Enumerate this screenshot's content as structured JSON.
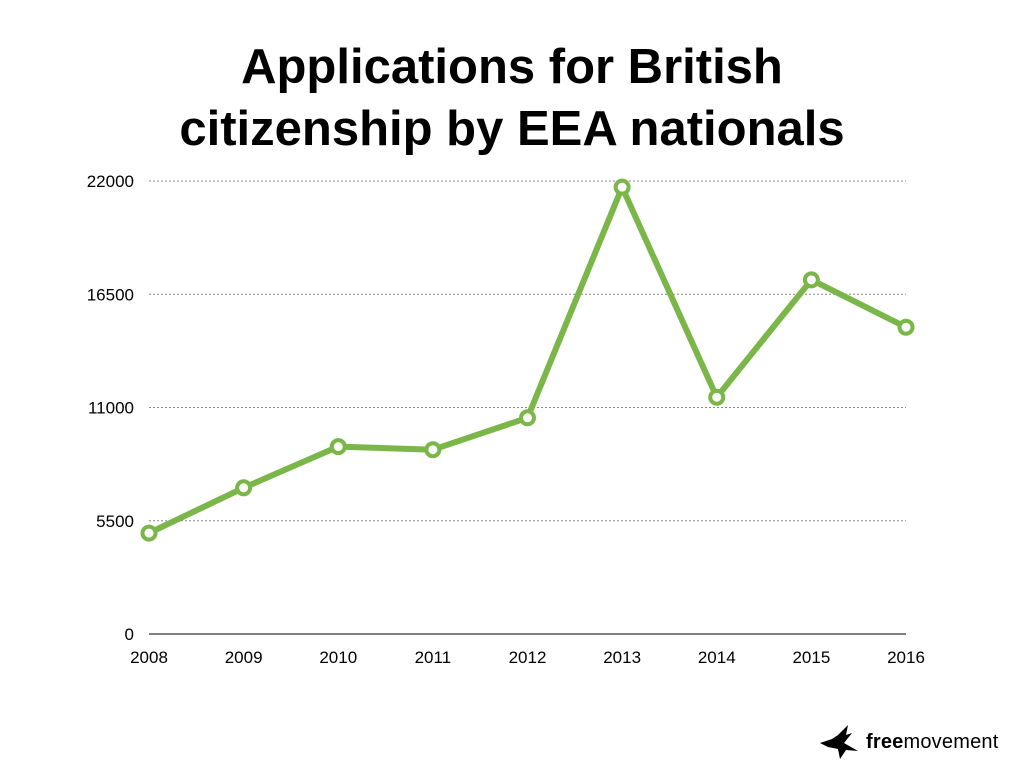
{
  "title_lines": [
    "Applications for British",
    "citizenship by EEA nationals"
  ],
  "brand": {
    "bold": "free",
    "regular": "movement",
    "logo_icon": "bird-logo-icon"
  },
  "colors": {
    "line": "#7ab648",
    "marker_fill": "#ffffff",
    "grid": "#888888",
    "axis": "#000000"
  },
  "chart_data": {
    "type": "line",
    "title": "Applications for British citizenship by EEA nationals",
    "xlabel": "",
    "ylabel": "",
    "x": [
      "2008",
      "2009",
      "2010",
      "2011",
      "2012",
      "2013",
      "2014",
      "2015",
      "2016"
    ],
    "series": [
      {
        "values": [
          4900,
          7100,
          9100,
          8950,
          10500,
          21700,
          11500,
          17200,
          14900
        ]
      }
    ],
    "ylim": [
      0,
      22000
    ],
    "yticks": [
      "0",
      "5500",
      "11000",
      "16500",
      "22000"
    ],
    "grid": "horizontal dotted",
    "legend": "none"
  }
}
